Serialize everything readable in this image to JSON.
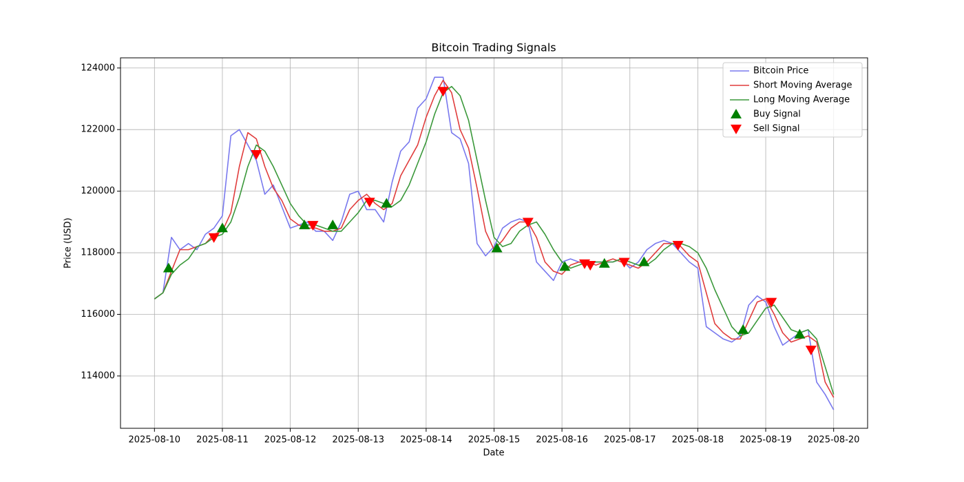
{
  "chart_data": {
    "type": "line",
    "title": "Bitcoin Trading Signals",
    "xlabel": "Date",
    "ylabel": "Price (USD)",
    "x": [
      "2025-08-10T00:00",
      "2025-08-10T03:00",
      "2025-08-10T06:00",
      "2025-08-10T09:00",
      "2025-08-10T12:00",
      "2025-08-10T15:00",
      "2025-08-10T18:00",
      "2025-08-10T21:00",
      "2025-08-11T00:00",
      "2025-08-11T03:00",
      "2025-08-11T06:00",
      "2025-08-11T09:00",
      "2025-08-11T12:00",
      "2025-08-11T15:00",
      "2025-08-11T18:00",
      "2025-08-11T21:00",
      "2025-08-12T00:00",
      "2025-08-12T03:00",
      "2025-08-12T06:00",
      "2025-08-12T09:00",
      "2025-08-12T12:00",
      "2025-08-12T15:00",
      "2025-08-12T18:00",
      "2025-08-12T21:00",
      "2025-08-13T00:00",
      "2025-08-13T03:00",
      "2025-08-13T06:00",
      "2025-08-13T09:00",
      "2025-08-13T12:00",
      "2025-08-13T15:00",
      "2025-08-13T18:00",
      "2025-08-13T21:00",
      "2025-08-14T00:00",
      "2025-08-14T03:00",
      "2025-08-14T06:00",
      "2025-08-14T09:00",
      "2025-08-14T12:00",
      "2025-08-14T15:00",
      "2025-08-14T18:00",
      "2025-08-14T21:00",
      "2025-08-15T00:00",
      "2025-08-15T03:00",
      "2025-08-15T06:00",
      "2025-08-15T09:00",
      "2025-08-15T12:00",
      "2025-08-15T15:00",
      "2025-08-15T18:00",
      "2025-08-15T21:00",
      "2025-08-16T00:00",
      "2025-08-16T03:00",
      "2025-08-16T06:00",
      "2025-08-16T09:00",
      "2025-08-16T12:00",
      "2025-08-16T15:00",
      "2025-08-16T18:00",
      "2025-08-16T21:00",
      "2025-08-17T00:00",
      "2025-08-17T03:00",
      "2025-08-17T06:00",
      "2025-08-17T09:00",
      "2025-08-17T12:00",
      "2025-08-17T15:00",
      "2025-08-17T18:00",
      "2025-08-17T21:00",
      "2025-08-18T00:00",
      "2025-08-18T03:00",
      "2025-08-18T06:00",
      "2025-08-18T09:00",
      "2025-08-18T12:00",
      "2025-08-18T15:00",
      "2025-08-18T18:00",
      "2025-08-18T21:00",
      "2025-08-19T00:00",
      "2025-08-19T03:00",
      "2025-08-19T06:00",
      "2025-08-19T09:00",
      "2025-08-19T12:00",
      "2025-08-19T15:00",
      "2025-08-19T18:00",
      "2025-08-19T21:00",
      "2025-08-20T00:00"
    ],
    "series": [
      {
        "name": "Bitcoin Price",
        "color": "#7878ee",
        "values": [
          116500,
          116700,
          118500,
          118100,
          118300,
          118100,
          118600,
          118800,
          119200,
          121800,
          122000,
          121500,
          121000,
          119900,
          120200,
          119500,
          118800,
          118900,
          119000,
          118700,
          118700,
          118400,
          119000,
          119900,
          120000,
          119400,
          119400,
          119000,
          120300,
          121300,
          121600,
          122700,
          123000,
          123700,
          123700,
          121900,
          121700,
          120900,
          118300,
          117900,
          118200,
          118800,
          119000,
          119100,
          119000,
          117700,
          117400,
          117100,
          117700,
          117800,
          117700,
          117600,
          117700,
          117700,
          117700,
          117800,
          117500,
          117700,
          118100,
          118300,
          118400,
          118300,
          118000,
          117700,
          117500,
          115600,
          115400,
          115200,
          115100,
          115300,
          116300,
          116600,
          116400,
          115600,
          115000,
          115200,
          115400,
          115500,
          113800,
          113400,
          112900
        ]
      },
      {
        "name": "Short Moving Average",
        "color": "#e03c3c",
        "values": [
          116500,
          116700,
          117400,
          118100,
          118100,
          118200,
          118300,
          118600,
          118700,
          119300,
          120800,
          121900,
          121700,
          120800,
          120100,
          119700,
          119100,
          118900,
          118800,
          118800,
          118700,
          118700,
          118800,
          119400,
          119700,
          119900,
          119600,
          119400,
          119600,
          120500,
          121000,
          121500,
          122400,
          123100,
          123600,
          123200,
          122000,
          121400,
          120100,
          118700,
          118100,
          118400,
          118800,
          119000,
          119000,
          118500,
          117700,
          117400,
          117300,
          117600,
          117700,
          117700,
          117600,
          117700,
          117800,
          117700,
          117600,
          117500,
          117700,
          118000,
          118300,
          118300,
          118200,
          117900,
          117700,
          116700,
          115700,
          115400,
          115200,
          115200,
          115800,
          116400,
          116500,
          116000,
          115400,
          115100,
          115200,
          115300,
          115100,
          113800,
          113300
        ]
      },
      {
        "name": "Long Moving Average",
        "color": "#3a983a",
        "values": [
          116500,
          116700,
          117300,
          117600,
          117800,
          118200,
          118300,
          118500,
          118600,
          119000,
          119800,
          120800,
          121500,
          121300,
          120800,
          120200,
          119600,
          119200,
          118900,
          118900,
          118800,
          118700,
          118700,
          119000,
          119300,
          119700,
          119700,
          119600,
          119500,
          119700,
          120200,
          120900,
          121600,
          122500,
          123200,
          123400,
          123100,
          122300,
          121000,
          119700,
          118500,
          118200,
          118300,
          118700,
          118900,
          119000,
          118600,
          118100,
          117700,
          117500,
          117600,
          117700,
          117700,
          117700,
          117700,
          117800,
          117700,
          117600,
          117600,
          117800,
          118100,
          118300,
          118300,
          118200,
          118000,
          117500,
          116800,
          116200,
          115600,
          115300,
          115400,
          115800,
          116200,
          116300,
          115900,
          115500,
          115400,
          115500,
          115200,
          114300,
          113400
        ]
      },
      {
        "name": "Buy Signal",
        "color": "green",
        "marker": "^",
        "x": [
          "2025-08-10T05:00",
          "2025-08-11T00:00",
          "2025-08-12T05:00",
          "2025-08-12T15:00",
          "2025-08-13T10:00",
          "2025-08-15T01:00",
          "2025-08-16T01:00",
          "2025-08-16T15:00",
          "2025-08-17T05:00",
          "2025-08-18T16:00",
          "2025-08-19T12:00"
        ],
        "values": [
          117500,
          118800,
          118900,
          118900,
          119600,
          118150,
          117550,
          117650,
          117700,
          115500,
          115350
        ]
      },
      {
        "name": "Sell Signal",
        "color": "red",
        "marker": "v",
        "x": [
          "2025-08-10T21:00",
          "2025-08-11T12:00",
          "2025-08-12T08:00",
          "2025-08-13T04:00",
          "2025-08-14T06:00",
          "2025-08-15T12:00",
          "2025-08-16T08:00",
          "2025-08-16T10:00",
          "2025-08-16T22:00",
          "2025-08-17T17:00",
          "2025-08-19T02:00",
          "2025-08-19T16:00"
        ],
        "values": [
          118500,
          121200,
          118900,
          119650,
          123250,
          119000,
          117650,
          117600,
          117700,
          118250,
          116400,
          114850
        ]
      }
    ],
    "xlim": [
      "2025-08-09T12:00",
      "2025-08-20T12:00"
    ],
    "xticks": [
      "2025-08-10",
      "2025-08-11",
      "2025-08-12",
      "2025-08-13",
      "2025-08-14",
      "2025-08-15",
      "2025-08-16",
      "2025-08-17",
      "2025-08-18",
      "2025-08-19",
      "2025-08-20"
    ],
    "ylim": [
      112300,
      124330
    ],
    "yticks": [
      114000,
      116000,
      118000,
      120000,
      122000,
      124000
    ],
    "grid": true,
    "legend": "upper right"
  }
}
